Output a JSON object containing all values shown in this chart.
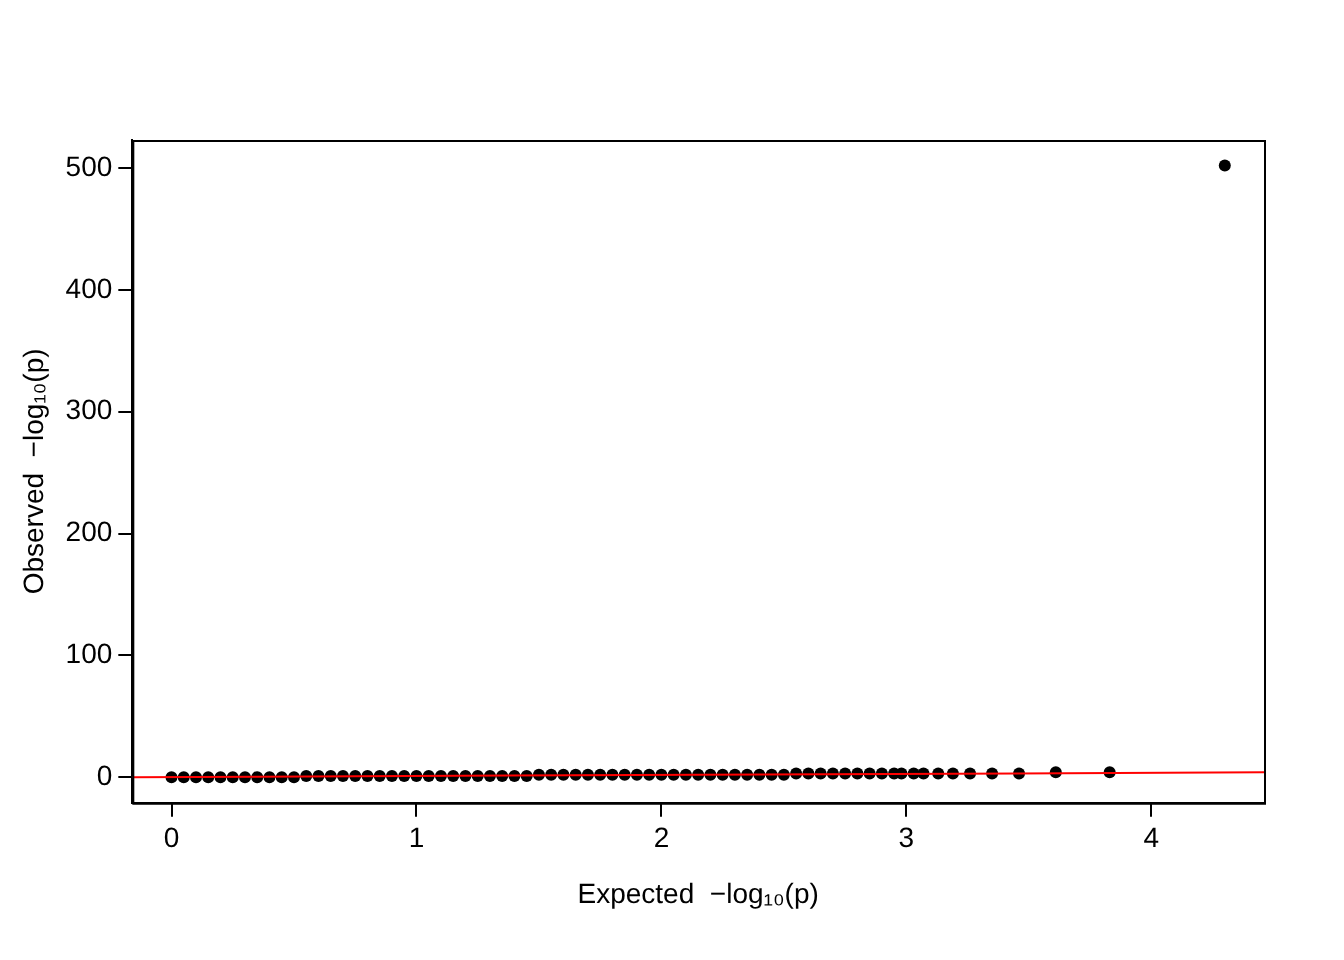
{
  "chart_data": {
    "type": "scatter",
    "xlabel": "Expected  −log₁₀(p)",
    "ylabel": "Observed  −log₁₀(p)",
    "xlim": [
      -0.16,
      4.46
    ],
    "ylim": [
      -21,
      523
    ],
    "xticks": [
      0,
      1,
      2,
      3,
      4
    ],
    "yticks": [
      0,
      100,
      200,
      300,
      400,
      500
    ],
    "grid": false,
    "legend": false,
    "marker": "circle",
    "series": [
      {
        "type": "scatter",
        "color": "#000000",
        "x": [
          0,
          0.05,
          0.1,
          0.15,
          0.2,
          0.25,
          0.3,
          0.35,
          0.4,
          0.45,
          0.5,
          0.55,
          0.6,
          0.65,
          0.7,
          0.75,
          0.8,
          0.85,
          0.9,
          0.95,
          1,
          1.05,
          1.1,
          1.15,
          1.2,
          1.25,
          1.3,
          1.35,
          1.4,
          1.45,
          1.5,
          1.55,
          1.6,
          1.65,
          1.7,
          1.75,
          1.8,
          1.85,
          1.9,
          1.95,
          2,
          2.05,
          2.1,
          2.15,
          2.2,
          2.25,
          2.3,
          2.35,
          2.4,
          2.45,
          2.5,
          2.55,
          2.6,
          2.65,
          2.7,
          2.75,
          2.8,
          2.85,
          2.9,
          2.95,
          2.98,
          3.03,
          3.07,
          3.13,
          3.19,
          3.26,
          3.35,
          3.46,
          3.61,
          3.83,
          4.3
        ],
        "values": [
          0,
          0,
          0,
          0,
          0,
          0,
          0,
          0,
          0,
          0,
          0,
          1,
          1,
          1,
          1,
          1,
          1,
          1,
          1,
          1,
          1,
          1,
          1,
          1,
          1,
          1,
          1,
          1,
          1,
          1,
          2,
          2,
          2,
          2,
          2,
          2,
          2,
          2,
          2,
          2,
          2,
          2,
          2,
          2,
          2,
          2,
          2,
          2,
          2,
          2,
          2,
          3,
          3,
          3,
          3,
          3,
          3,
          3,
          3,
          3,
          3,
          3,
          3,
          3,
          3,
          3,
          3,
          3,
          4,
          4,
          502
        ]
      },
      {
        "type": "line",
        "color": "#ff0000",
        "marker": "none",
        "x": [
          -0.16,
          4.46
        ],
        "values": [
          0,
          4
        ]
      }
    ]
  }
}
